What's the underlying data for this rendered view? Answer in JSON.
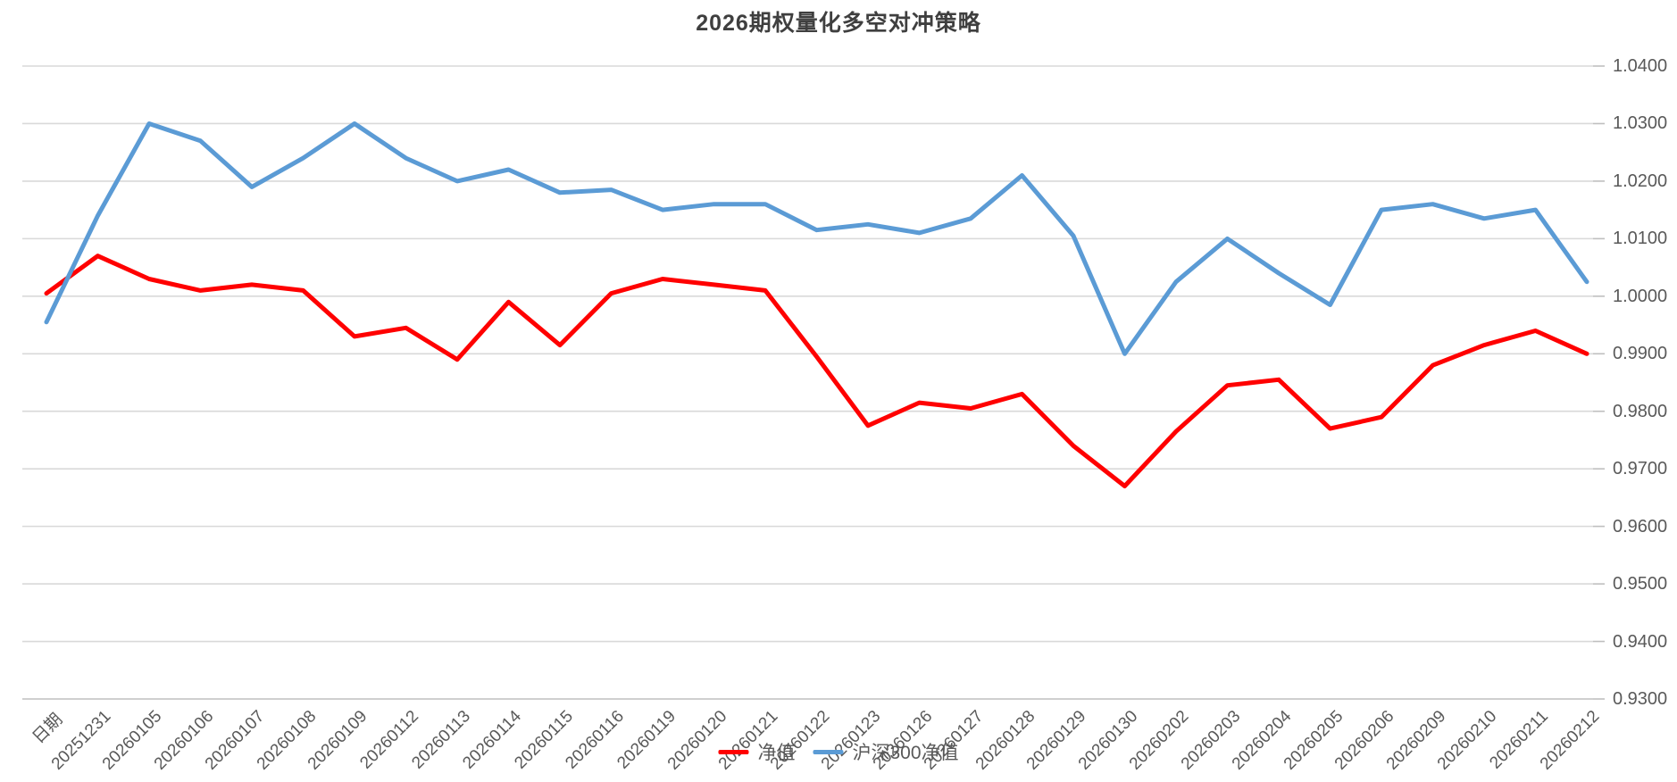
{
  "title": "2026期权量化多空对冲策略",
  "chart_data": {
    "type": "line",
    "title": "2026期权量化多空对冲策略",
    "categories": [
      "日期",
      "20251231",
      "20260105",
      "20260106",
      "20260107",
      "20260108",
      "20260109",
      "20260112",
      "20260113",
      "20260114",
      "20260115",
      "20260116",
      "20260119",
      "20260120",
      "20260121",
      "20260122",
      "20260123",
      "20260126",
      "20260127",
      "20260128",
      "20260129",
      "20260130",
      "20260202",
      "20260203",
      "20260204",
      "20260205",
      "20260206",
      "20260209",
      "20260210",
      "20260211",
      "20260212"
    ],
    "series": [
      {
        "name": "净值",
        "color": "#ff0000",
        "values": [
          1.0005,
          1.007,
          1.003,
          1.001,
          1.002,
          1.001,
          0.993,
          0.9945,
          0.989,
          0.999,
          0.9915,
          1.0005,
          1.003,
          1.002,
          1.001,
          0.9895,
          0.9775,
          0.9815,
          0.9805,
          0.983,
          0.974,
          0.967,
          0.9765,
          0.9845,
          0.9855,
          0.977,
          0.979,
          0.988,
          0.9915,
          0.994,
          0.99
        ]
      },
      {
        "name": "沪深300净值",
        "color": "#5b9bd5",
        "values": [
          0.9955,
          1.014,
          1.03,
          1.027,
          1.019,
          1.024,
          1.03,
          1.024,
          1.02,
          1.022,
          1.018,
          1.0185,
          1.015,
          1.016,
          1.016,
          1.0115,
          1.0125,
          1.011,
          1.0135,
          1.021,
          1.0105,
          0.99,
          1.0025,
          1.01,
          1.004,
          0.9985,
          1.015,
          1.016,
          1.0135,
          1.015,
          1.0025
        ]
      }
    ],
    "ylim": [
      0.93,
      1.04
    ],
    "y_ticks": [
      "1.0400",
      "1.0300",
      "1.0200",
      "1.0100",
      "1.0000",
      "0.9900",
      "0.9800",
      "0.9700",
      "0.9600",
      "0.9500",
      "0.9400",
      "0.9300"
    ],
    "y_axis_side": "right",
    "x_label_rotation": -45,
    "grid": "horizontal",
    "legend_position": "bottom-center",
    "colors": {
      "gridline": "#d9d9d9",
      "axis_line": "#bfbfbf",
      "axis_text": "#595959",
      "title_text": "#3f3f3f",
      "background": "#ffffff"
    }
  }
}
